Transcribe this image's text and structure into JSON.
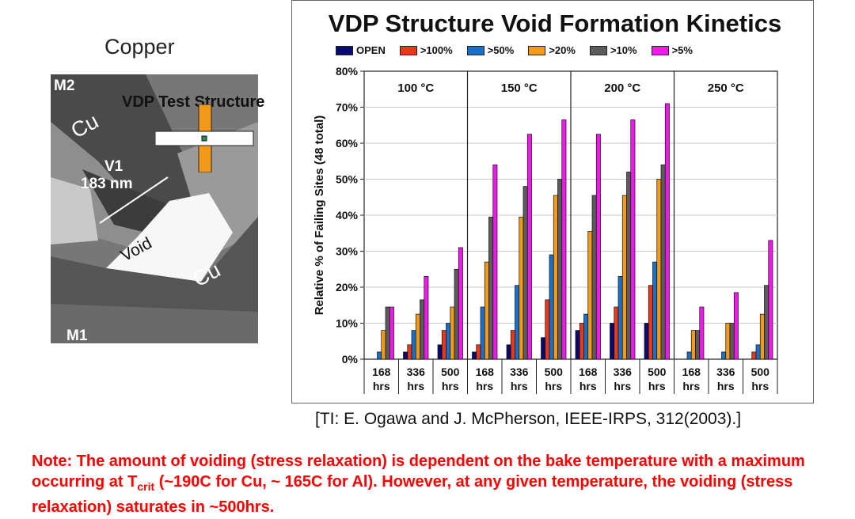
{
  "sem": {
    "title": "Copper",
    "labels": {
      "m2": "M2",
      "m1": "M1",
      "cu_top": "Cu",
      "cu_bottom": "Cu",
      "v1": "V1",
      "v1_size": "183 nm",
      "void": "Void"
    },
    "vdp_label": "VDP Test Structure"
  },
  "citation": "[TI: E. Ogawa and J. McPherson, IEEE-IRPS, 312(2003).]",
  "note": {
    "part1": "Note: The amount of voiding (stress relaxation) is dependent on the bake temperature with a maximum occurring at T",
    "sub": "crit",
    "part2": " (~190C for Cu, ~ 165C for Al). However, at any given temperature, the voiding (stress relaxation) saturates in ~500hrs."
  },
  "chart_data": {
    "type": "bar",
    "title": "VDP Structure Void Formation Kinetics",
    "ylabel": "Relative % of Failing Sites (48 total)",
    "xlabel": "",
    "ylim": [
      0,
      80
    ],
    "yticks": [
      "0%",
      "10%",
      "20%",
      "30%",
      "40%",
      "50%",
      "60%",
      "70%",
      "80%"
    ],
    "groups": [
      "100 °C",
      "150 °C",
      "200 °C",
      "250 °C"
    ],
    "categories": [
      [
        "168",
        "hrs"
      ],
      [
        "336",
        "hrs"
      ],
      [
        "500",
        "hrs"
      ],
      [
        "168",
        "hrs"
      ],
      [
        "336",
        "hrs"
      ],
      [
        "500",
        "hrs"
      ],
      [
        "168",
        "hrs"
      ],
      [
        "336",
        "hrs"
      ],
      [
        "500",
        "hrs"
      ],
      [
        "168",
        "hrs"
      ],
      [
        "336",
        "hrs"
      ],
      [
        "500",
        "hrs"
      ]
    ],
    "series": [
      {
        "name": "OPEN",
        "color": "#0a0a6e",
        "values": [
          0,
          2,
          4,
          2,
          4,
          6,
          8,
          10,
          10,
          0,
          0,
          0
        ]
      },
      {
        "name": ">100%",
        "color": "#e83a1a",
        "values": [
          0,
          4,
          8,
          4,
          8,
          16.5,
          10,
          14.5,
          20.5,
          0,
          0,
          2
        ]
      },
      {
        "name": ">50%",
        "color": "#1a6fc9",
        "values": [
          2,
          8,
          10,
          14.5,
          20.5,
          29,
          12.5,
          23,
          27,
          2,
          2,
          4
        ]
      },
      {
        "name": ">20%",
        "color": "#f39a1a",
        "values": [
          8,
          12.5,
          14.5,
          27,
          39.5,
          45.5,
          35.5,
          45.5,
          50,
          8,
          10,
          12.5
        ]
      },
      {
        "name": ">10%",
        "color": "#5c5c5c",
        "values": [
          14.5,
          16.5,
          25,
          39.5,
          48,
          50,
          45.5,
          52,
          54,
          8,
          10,
          20.5
        ]
      },
      {
        "name": ">5%",
        "color": "#ee1ae8",
        "values": [
          14.5,
          23,
          31,
          54,
          62.5,
          66.5,
          62.5,
          66.5,
          71,
          14.5,
          18.5,
          33
        ]
      }
    ],
    "grid": true,
    "legend": "top"
  }
}
